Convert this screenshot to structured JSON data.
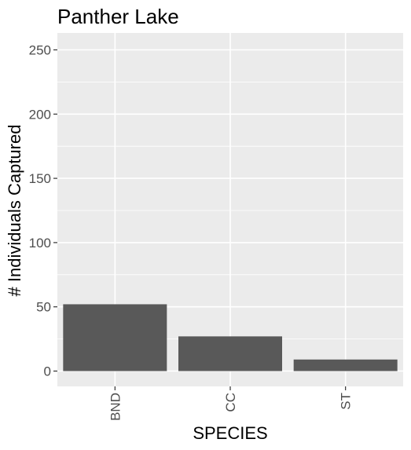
{
  "chart_data": {
    "type": "bar",
    "title": "Panther Lake",
    "xlabel": "SPECIES",
    "ylabel": "# Individuals Captured",
    "categories": [
      "BND",
      "CC",
      "ST"
    ],
    "values": [
      52,
      27,
      9
    ],
    "ylim": [
      0,
      260
    ],
    "yticks": [
      0,
      50,
      100,
      150,
      200,
      250
    ],
    "grid": true,
    "legend": "none",
    "colors": {
      "bar": "#595959",
      "panel": "#ebebeb",
      "grid": "#ffffff",
      "tick_text": "#4d4d4d"
    }
  }
}
